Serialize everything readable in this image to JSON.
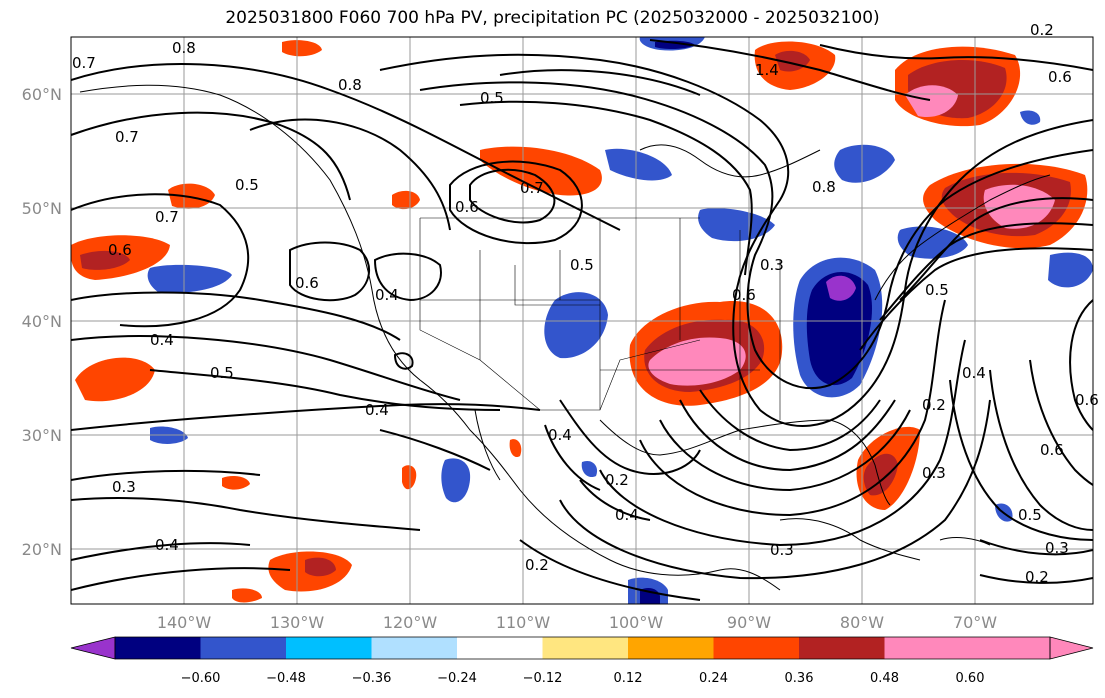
{
  "title": "2025031800 F060 700 hPa PV, precipitation PC (2025032000 - 2025032100)",
  "lat_labels": [
    "60°N",
    "50°N",
    "40°N",
    "30°N",
    "20°N"
  ],
  "lon_labels": [
    "140°W",
    "130°W",
    "120°W",
    "110°W",
    "100°W",
    "90°W",
    "80°W",
    "70°W"
  ],
  "contour_labels": [
    "0.7",
    "0.8",
    "0.8",
    "0.5",
    "1.4",
    "0.6",
    "0.7",
    "0.5",
    "0.6",
    "0.7",
    "0.8",
    "0.7",
    "0.6",
    "0.6",
    "0.4",
    "0.5",
    "0.6",
    "0.4",
    "0.5",
    "0.4",
    "0.4",
    "0.2",
    "0.4",
    "0.3",
    "0.4",
    "0.2",
    "0.3",
    "0.3",
    "0.2",
    "0.4",
    "0.6",
    "0.5",
    "0.2",
    "0.3",
    "0.6",
    "0.5",
    "0.3",
    "0.2"
  ],
  "colorbar": {
    "ticks": [
      "−0.60",
      "−0.48",
      "−0.36",
      "−0.24",
      "−0.12",
      "0.12",
      "0.24",
      "0.36",
      "0.48",
      "0.60"
    ],
    "colors": [
      "#9933cc",
      "#000080",
      "#3355cc",
      "#00bfff",
      "#b0e0ff",
      "#ffffff",
      "#ffe680",
      "#ffa500",
      "#ff4500",
      "#b22222",
      "#ff88bb"
    ]
  }
}
